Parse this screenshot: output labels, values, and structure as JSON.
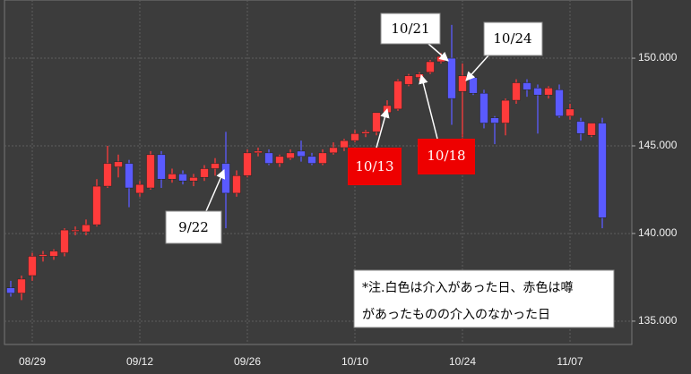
{
  "chart_data": {
    "type": "candlestick",
    "categories": [
      null,
      null,
      "08/29",
      null,
      null,
      null,
      null,
      null,
      null,
      null,
      null,
      null,
      "09/12",
      null,
      null,
      null,
      null,
      null,
      null,
      null,
      null,
      null,
      "09/26",
      null,
      null,
      null,
      null,
      null,
      null,
      null,
      null,
      null,
      "10/10",
      null,
      null,
      null,
      null,
      null,
      null,
      null,
      null,
      null,
      "10/24",
      null,
      null,
      null,
      null,
      null,
      null,
      null,
      null,
      null,
      "11/07",
      null,
      null,
      null
    ],
    "open": [
      136.9,
      136.6,
      137.6,
      138.7,
      138.7,
      138.9,
      140.2,
      140.1,
      140.5,
      142.7,
      143.8,
      144.0,
      142.3,
      142.6,
      144.5,
      143.1,
      143.4,
      143.0,
      143.2,
      143.7,
      144.0,
      142.3,
      143.3,
      144.6,
      144.6,
      144.0,
      144.3,
      144.7,
      144.4,
      144.0,
      144.6,
      144.9,
      145.3,
      145.7,
      145.8,
      146.9,
      147.1,
      148.5,
      148.9,
      149.2,
      149.8,
      150.0,
      148.1,
      148.9,
      148.0,
      146.6,
      146.3,
      147.6,
      148.6,
      148.3,
      147.9,
      148.2,
      146.7,
      146.4,
      145.6,
      146.3
    ],
    "high": [
      137.3,
      137.6,
      138.9,
      139.0,
      139.1,
      140.3,
      140.4,
      140.8,
      143.1,
      145.0,
      144.5,
      144.2,
      143.0,
      144.7,
      144.7,
      143.7,
      143.6,
      143.4,
      143.9,
      144.3,
      145.8,
      143.6,
      144.8,
      144.9,
      144.8,
      144.5,
      144.8,
      145.3,
      144.6,
      144.8,
      145.2,
      145.4,
      145.9,
      145.9,
      146.9,
      147.6,
      148.8,
      149.1,
      149.2,
      149.9,
      150.3,
      151.9,
      149.7,
      149.0,
      148.2,
      146.7,
      147.7,
      148.8,
      148.8,
      148.5,
      148.4,
      148.5,
      147.4,
      146.6,
      146.3,
      146.6
    ],
    "low": [
      136.4,
      136.2,
      137.3,
      138.4,
      138.5,
      138.7,
      139.9,
      139.9,
      140.4,
      142.6,
      143.2,
      141.5,
      142.1,
      142.5,
      142.6,
      142.9,
      142.8,
      142.7,
      143.0,
      143.3,
      140.3,
      142.1,
      143.2,
      144.4,
      143.9,
      143.8,
      144.2,
      144.1,
      143.9,
      143.9,
      144.5,
      144.7,
      145.2,
      145.5,
      145.6,
      146.6,
      147.0,
      148.4,
      148.7,
      149.1,
      149.7,
      146.2,
      145.5,
      147.9,
      146.0,
      145.1,
      145.6,
      147.4,
      147.8,
      145.7,
      147.7,
      146.6,
      146.5,
      145.3,
      145.5,
      140.3
    ],
    "close": [
      136.6,
      137.4,
      138.7,
      138.8,
      139.0,
      140.2,
      140.2,
      140.5,
      142.7,
      144.0,
      144.1,
      142.6,
      142.8,
      144.5,
      143.1,
      143.4,
      143.0,
      143.2,
      143.7,
      144.0,
      142.3,
      143.3,
      144.6,
      144.7,
      144.0,
      144.4,
      144.6,
      144.4,
      144.0,
      144.6,
      144.9,
      145.3,
      145.7,
      145.8,
      146.9,
      147.3,
      148.7,
      149.0,
      149.1,
      149.8,
      150.1,
      147.7,
      149.0,
      148.0,
      146.3,
      146.3,
      147.6,
      148.6,
      148.2,
      147.9,
      148.3,
      146.7,
      147.1,
      145.7,
      146.3,
      140.9
    ],
    "up_color": "#ff3b3b",
    "down_color": "#5a5aff",
    "ylim": [
      133.67,
      153.32
    ],
    "yticks": [
      {
        "value": 135,
        "label": "135.000"
      },
      {
        "value": 140,
        "label": "140.000"
      },
      {
        "value": 145,
        "label": "145.000"
      },
      {
        "value": 150,
        "label": "150.000"
      }
    ],
    "grid": true,
    "annotations": [
      "9/22",
      "10/13",
      "10/18",
      "10/21",
      "10/24"
    ],
    "note": [
      "*注.白色は介入があった日、赤色は噂",
      "があったものの介入のなかった日"
    ]
  }
}
